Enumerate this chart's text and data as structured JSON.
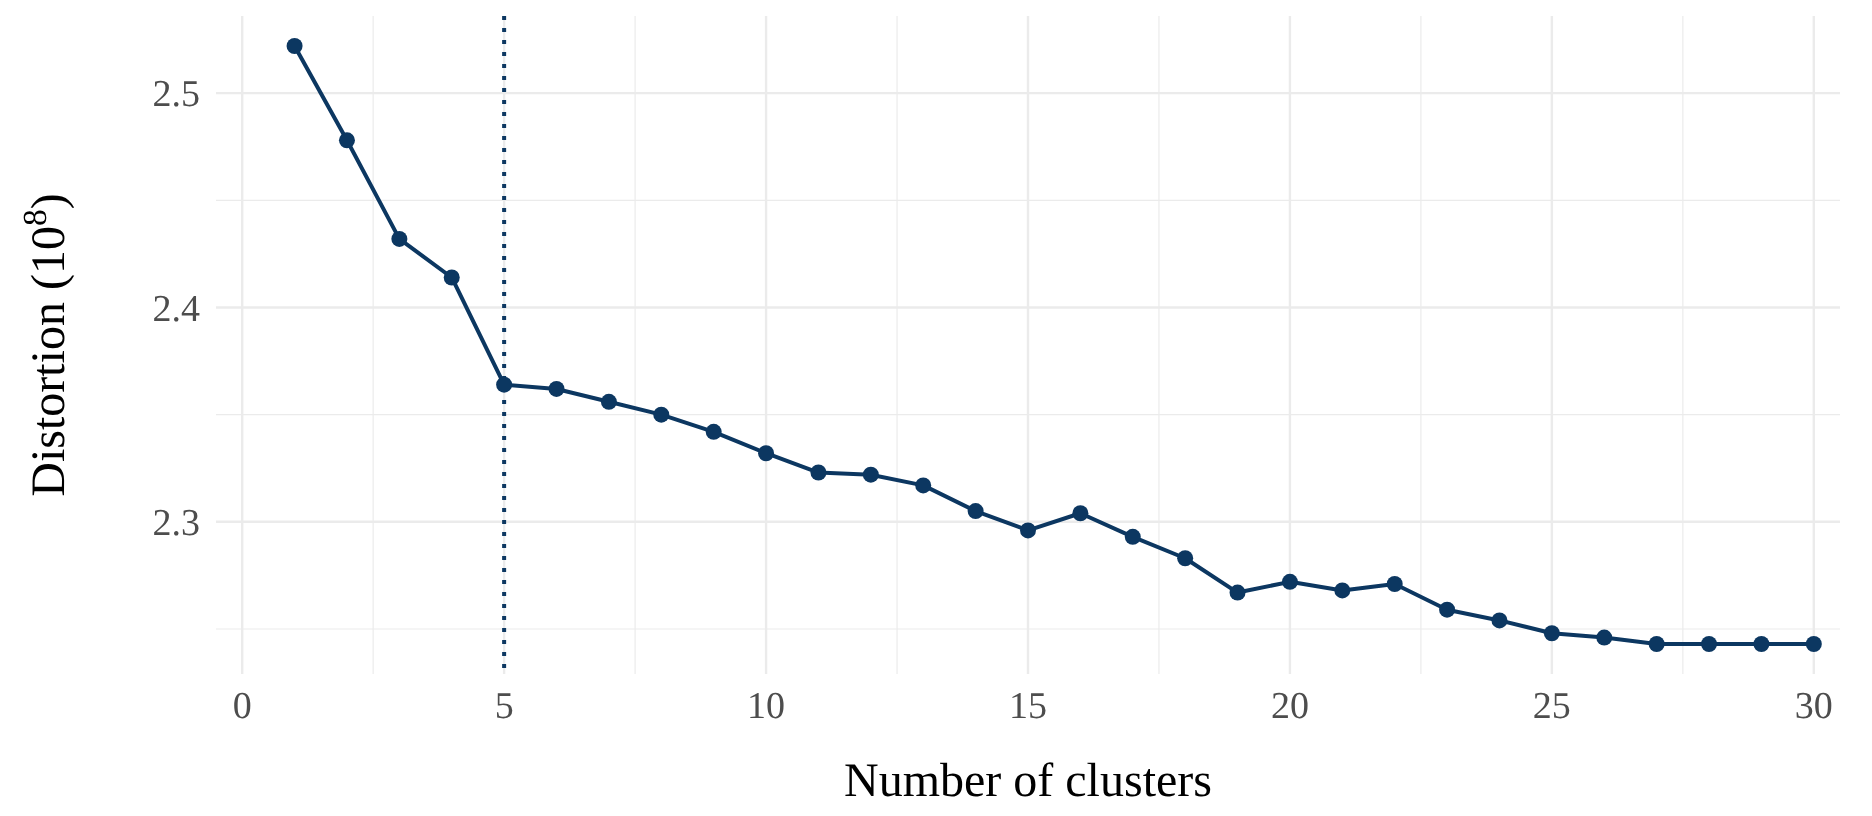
{
  "chart_data": {
    "type": "line",
    "xlabel": "Number of clusters",
    "ylabel": "Distortion (10$^{8}$)",
    "x": [
      1,
      2,
      3,
      4,
      5,
      6,
      7,
      8,
      9,
      10,
      11,
      12,
      13,
      14,
      15,
      16,
      17,
      18,
      19,
      20,
      21,
      22,
      23,
      24,
      25,
      26,
      27,
      28,
      29,
      30
    ],
    "series": [
      {
        "color": "#0c3761",
        "values": [
          2.522,
          2.478,
          2.432,
          2.414,
          2.364,
          2.362,
          2.356,
          2.35,
          2.342,
          2.332,
          2.323,
          2.322,
          2.317,
          2.305,
          2.296,
          2.304,
          2.293,
          2.283,
          2.267,
          2.272,
          2.268,
          2.271,
          2.259,
          2.254,
          2.248,
          2.246,
          2.243,
          2.243,
          2.243,
          2.243
        ]
      }
    ],
    "xlim": [
      -0.5,
      30.5
    ],
    "ylim": [
      2.229,
      2.536
    ],
    "xticks": [
      0,
      5,
      10,
      15,
      20,
      25,
      30
    ],
    "yticks": [
      {
        "value": 2.3,
        "label": "2.3"
      },
      {
        "value": 2.4,
        "label": "2.4"
      },
      {
        "value": 2.5,
        "label": "2.5"
      }
    ],
    "grid": true,
    "marker": "circle",
    "line_style": "solid",
    "ref_lines": [
      {
        "axis": "x",
        "value": 5,
        "line_style": "dotted",
        "color": "#0c3761"
      }
    ]
  }
}
